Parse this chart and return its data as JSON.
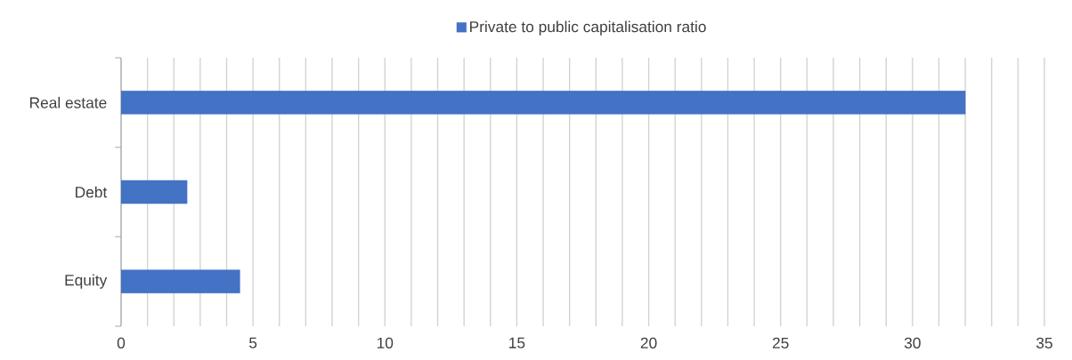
{
  "chart_data": {
    "type": "bar",
    "orientation": "horizontal",
    "categories": [
      "Real estate",
      "Debt",
      "Equity"
    ],
    "series": [
      {
        "name": "Private to public capitalisation ratio",
        "color": "#4472c4",
        "values": [
          32,
          2.5,
          4.5
        ]
      }
    ],
    "xlim": [
      0,
      35
    ],
    "xticks": [
      0,
      {
        "value": 1,
        "label": null
      },
      {
        "value": 2,
        "label": null
      },
      {
        "value": 3,
        "label": null
      },
      {
        "value": 4,
        "label": null
      },
      5,
      {
        "value": 6,
        "label": null
      },
      {
        "value": 7,
        "label": null
      },
      {
        "value": 8,
        "label": null
      },
      {
        "value": 9,
        "label": null
      },
      10,
      {
        "value": 11,
        "label": null
      },
      {
        "value": 12,
        "label": null
      },
      {
        "value": 13,
        "label": null
      },
      {
        "value": 14,
        "label": null
      },
      15,
      {
        "value": 16,
        "label": null
      },
      {
        "value": 17,
        "label": null
      },
      {
        "value": 18,
        "label": null
      },
      {
        "value": 19,
        "label": null
      },
      20,
      {
        "value": 21,
        "label": null
      },
      {
        "value": 22,
        "label": null
      },
      {
        "value": 23,
        "label": null
      },
      {
        "value": 24,
        "label": null
      },
      25,
      {
        "value": 26,
        "label": null
      },
      {
        "value": 27,
        "label": null
      },
      {
        "value": 28,
        "label": null
      },
      {
        "value": 29,
        "label": null
      },
      30,
      {
        "value": 31,
        "label": null
      },
      {
        "value": 32,
        "label": null
      },
      {
        "value": 33,
        "label": null
      },
      {
        "value": 34,
        "label": null
      },
      35
    ],
    "grid": "x",
    "legend": "top"
  }
}
